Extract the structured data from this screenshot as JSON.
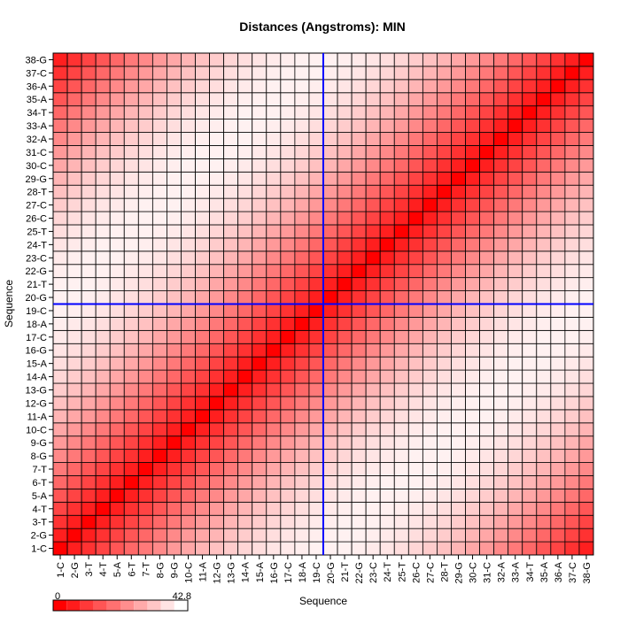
{
  "chart_data": {
    "type": "heatmap",
    "title": "Distances (Angstroms):  MIN",
    "xlabel": "Sequence",
    "ylabel": "Sequence",
    "sequence": [
      "1-C",
      "2-G",
      "3-T",
      "4-T",
      "5-A",
      "6-T",
      "7-T",
      "8-G",
      "9-G",
      "10-C",
      "11-A",
      "12-G",
      "13-G",
      "14-A",
      "15-A",
      "16-G",
      "17-C",
      "18-A",
      "19-C",
      "20-G",
      "21-T",
      "22-G",
      "23-C",
      "24-T",
      "25-T",
      "26-C",
      "27-C",
      "28-T",
      "29-G",
      "30-C",
      "31-C",
      "32-A",
      "33-A",
      "34-T",
      "35-A",
      "36-A",
      "37-C",
      "38-G"
    ],
    "value_range": [
      0,
      42.8
    ],
    "colorbar": {
      "min_label": "0",
      "max_label": "42.8",
      "low_color": "#ff0000",
      "high_color": "#ffffff"
    },
    "highlight_crosshair": {
      "x": "20-G",
      "y": "20-G",
      "color": "#0000ff"
    }
  }
}
